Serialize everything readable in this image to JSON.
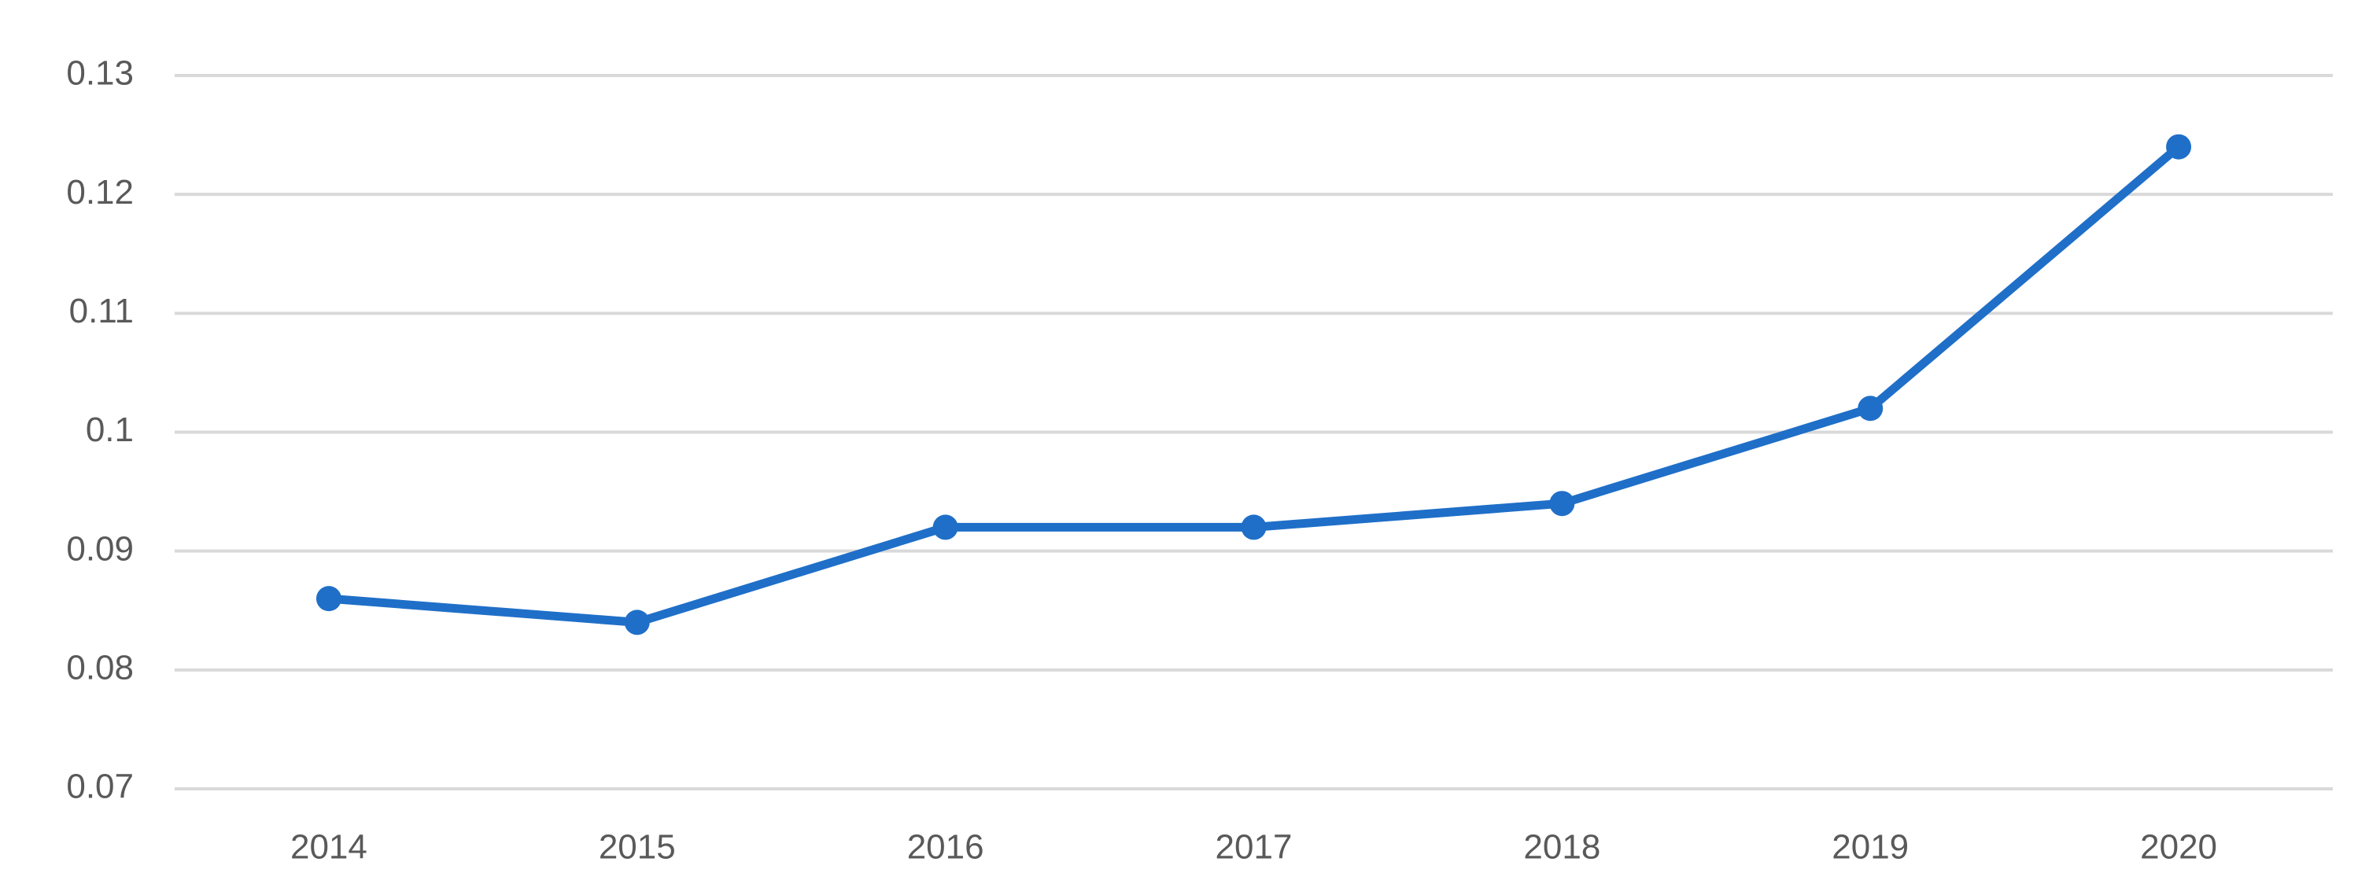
{
  "chart_data": {
    "type": "line",
    "categories": [
      "2014",
      "2015",
      "2016",
      "2017",
      "2018",
      "2019",
      "2020"
    ],
    "values": [
      0.086,
      0.084,
      0.092,
      0.092,
      0.094,
      0.102,
      0.124
    ],
    "color": "#1f6fc8",
    "ylim": [
      0.07,
      0.13
    ],
    "yticks": [
      0.07,
      0.08,
      0.09,
      0.1,
      0.11,
      0.12,
      0.13
    ],
    "grid": true
  }
}
